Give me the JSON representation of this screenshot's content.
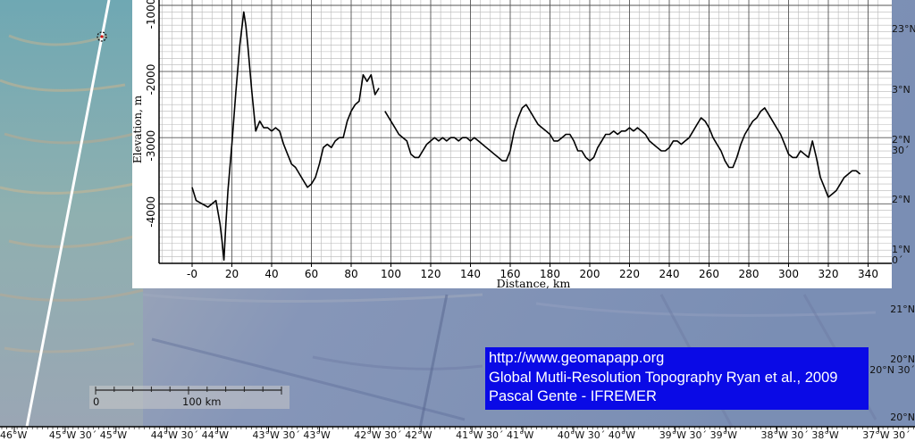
{
  "credit": {
    "lines": [
      "http://www.geomapapp.org",
      "Global Mutli-Resolution Topography Ryan et al., 2009",
      "Pascal Gente - IFREMER"
    ]
  },
  "scale_bar": {
    "zero_label": "0",
    "distance_label": "100 km"
  },
  "map_axes": {
    "longitude_labels": [
      "46°W",
      "45°W 30´",
      "45°W",
      "44°W 30´",
      "44°W",
      "43°W 30´",
      "43°W",
      "42°W 30´",
      "42°W",
      "41°W 30´",
      "41°W",
      "40°W 30´",
      "40°W",
      "39°W 30´",
      "39°W",
      "38°W 30´",
      "38°W",
      "37°W 30´"
    ],
    "latitude_labels": [
      "21°N",
      "20°N",
      "20°N 30´",
      "20°N"
    ],
    "right_edge_labels": [
      "23°N",
      "3°N",
      "2°N",
      "30´",
      "2°N",
      "1°N",
      "0´"
    ]
  },
  "colors": {
    "credit_bg": "#0a0ae6",
    "profile_line": "#000000",
    "track_line": "#ffffff"
  },
  "chart_data": {
    "type": "line",
    "title": "",
    "xlabel": "Distance, km",
    "ylabel": "Elevation, m",
    "xlim": [
      -20,
      345
    ],
    "ylim": [
      -5000,
      -1000
    ],
    "y_inverted": true,
    "grid": true,
    "x_ticks": [
      "-0",
      "20",
      "40",
      "60",
      "80",
      "100",
      "120",
      "140",
      "160",
      "180",
      "200",
      "220",
      "240",
      "260",
      "280",
      "300",
      "320",
      "340"
    ],
    "y_ticks": [
      "-1000",
      "-2000",
      "-3000",
      "-4000"
    ],
    "series": [
      {
        "x": [
          0,
          2,
          5,
          8,
          12,
          14,
          15,
          16,
          17,
          18,
          20,
          22,
          24,
          26,
          27,
          28,
          30,
          32,
          34,
          36,
          38,
          40,
          42,
          44,
          46,
          48,
          50,
          52,
          54,
          56,
          58,
          60,
          62,
          64,
          66,
          68,
          70,
          72,
          74,
          76,
          78,
          80,
          82,
          84,
          86,
          88,
          90,
          92,
          94
        ],
        "y": [
          -3750,
          -3950,
          -4000,
          -4050,
          -3950,
          -4300,
          -4550,
          -4850,
          -4300,
          -3800,
          -3100,
          -2300,
          -1600,
          -1100,
          -1300,
          -1600,
          -2300,
          -2900,
          -2750,
          -2850,
          -2850,
          -2900,
          -2850,
          -2900,
          -3100,
          -3250,
          -3400,
          -3450,
          -3550,
          -3650,
          -3750,
          -3700,
          -3600,
          -3400,
          -3150,
          -3100,
          -3150,
          -3050,
          -3000,
          -3000,
          -2750,
          -2600,
          -2500,
          -2450,
          -2050,
          -2150,
          -2050,
          -2350,
          -2250
        ]
      },
      {
        "x": [
          97,
          100,
          102,
          104,
          106,
          108,
          110,
          112,
          114,
          116,
          118,
          120,
          122,
          124,
          126,
          128,
          130,
          132,
          134,
          136,
          138,
          140,
          142,
          144,
          146,
          148,
          150,
          152,
          154,
          156,
          158,
          160,
          162,
          164,
          166,
          168,
          170,
          172,
          174,
          176,
          178,
          180,
          182,
          184,
          186,
          188,
          190,
          192,
          194,
          196,
          198,
          200,
          202,
          204,
          206,
          208,
          210,
          212,
          214,
          216,
          218,
          220,
          222,
          224,
          226,
          228,
          230,
          232,
          234,
          236,
          238,
          240,
          242,
          244,
          246,
          248,
          250,
          252,
          254,
          256,
          258,
          260,
          262,
          264,
          266,
          268,
          270,
          272,
          274,
          276,
          278,
          280,
          282,
          284,
          286,
          288,
          290,
          292,
          294,
          296,
          298,
          300,
          302,
          304,
          306,
          308,
          310,
          312,
          314,
          316,
          318,
          320,
          322,
          324,
          326,
          328,
          330,
          332,
          334,
          336
        ],
        "y": [
          -2600,
          -2750,
          -2850,
          -2950,
          -3000,
          -3050,
          -3250,
          -3300,
          -3300,
          -3200,
          -3100,
          -3050,
          -3000,
          -3050,
          -3000,
          -3050,
          -3000,
          -3000,
          -3050,
          -3000,
          -3000,
          -3050,
          -3000,
          -3050,
          -3100,
          -3150,
          -3200,
          -3250,
          -3300,
          -3350,
          -3350,
          -3200,
          -2900,
          -2700,
          -2550,
          -2500,
          -2600,
          -2700,
          -2800,
          -2850,
          -2900,
          -2950,
          -3050,
          -3050,
          -3000,
          -2950,
          -2950,
          -3050,
          -3200,
          -3200,
          -3300,
          -3350,
          -3300,
          -3150,
          -3050,
          -2950,
          -2950,
          -2900,
          -2950,
          -2900,
          -2900,
          -2850,
          -2900,
          -2850,
          -2900,
          -2950,
          -3050,
          -3100,
          -3150,
          -3200,
          -3200,
          -3150,
          -3050,
          -3050,
          -3100,
          -3050,
          -3000,
          -2900,
          -2800,
          -2700,
          -2750,
          -2850,
          -3000,
          -3100,
          -3200,
          -3350,
          -3450,
          -3450,
          -3300,
          -3100,
          -2950,
          -2850,
          -2750,
          -2700,
          -2600,
          -2550,
          -2650,
          -2750,
          -2850,
          -2950,
          -3100,
          -3250,
          -3300,
          -3300,
          -3200,
          -3250,
          -3300,
          -3050,
          -3300,
          -3600,
          -3750,
          -3900,
          -3850,
          -3800,
          -3700,
          -3600,
          -3550,
          -3500,
          -3500,
          -3550
        ]
      }
    ]
  }
}
